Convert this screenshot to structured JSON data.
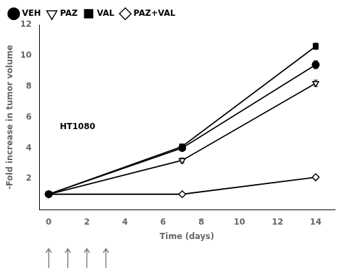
{
  "chart_data": {
    "type": "line",
    "xlabel": "Time (days)",
    "ylabel": "-Fold increase in tumor volume",
    "annotation": "HT1080",
    "x": [
      0,
      7,
      14
    ],
    "series": [
      {
        "name": "VEH",
        "color": "#000000",
        "marker": "circle",
        "values": [
          1.0,
          4.0,
          9.4
        ],
        "errors": [
          0.05,
          0.15,
          0.25
        ]
      },
      {
        "name": "PAZ",
        "color": "#000000",
        "marker": "triangle-down-open",
        "values": [
          1.0,
          3.2,
          8.2
        ],
        "errors": [
          0.05,
          0.15,
          0.2
        ]
      },
      {
        "name": "VAL",
        "color": "#000000",
        "marker": "square",
        "values": [
          1.0,
          4.1,
          10.6
        ],
        "errors": [
          0.05,
          0.12,
          0.2
        ]
      },
      {
        "name": "PAZ+VAL",
        "color": "#000000",
        "marker": "diamond-open",
        "values": [
          1.0,
          1.0,
          2.1
        ],
        "errors": [
          0.05,
          0.08,
          0.1
        ]
      }
    ],
    "arrows": [
      0,
      1,
      2,
      3
    ],
    "xlim": [
      -0.5,
      15.0
    ],
    "ylim": [
      0,
      12
    ],
    "xticks": [
      0,
      2,
      4,
      6,
      8,
      10,
      12,
      14
    ],
    "yticks": [
      2,
      4,
      6,
      8,
      10,
      12
    ],
    "grid": false,
    "legend": "upper left"
  }
}
